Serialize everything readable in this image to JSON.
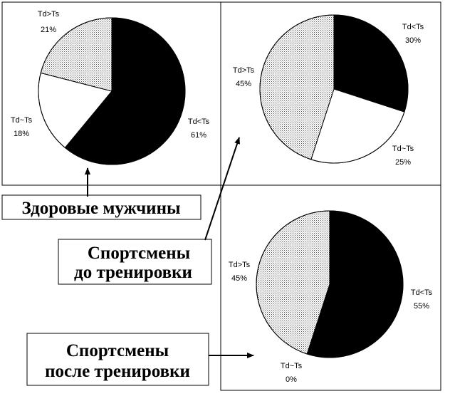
{
  "colors": {
    "Td<Ts": "#000000",
    "Td~Ts": "#ffffff",
    "Td>Ts": "dotted-light-gray"
  },
  "callouts": {
    "healthy": "Здоровые мужчины",
    "before": [
      "Спортсмены",
      "до тренировки"
    ],
    "after": [
      "Спортсмены",
      "после тренировки"
    ]
  },
  "chart_data": [
    {
      "type": "pie",
      "id": "healthy",
      "slices": [
        {
          "label": "Td<Ts",
          "value": 61,
          "text": "61%"
        },
        {
          "label": "Td~Ts",
          "value": 18,
          "text": "18%"
        },
        {
          "label": "Td>Ts",
          "value": 21,
          "text": "21%"
        }
      ]
    },
    {
      "type": "pie",
      "id": "before",
      "slices": [
        {
          "label": "Td<Ts",
          "value": 30,
          "text": "30%"
        },
        {
          "label": "Td~Ts",
          "value": 25,
          "text": "25%"
        },
        {
          "label": "Td>Ts",
          "value": 45,
          "text": "45%"
        }
      ]
    },
    {
      "type": "pie",
      "id": "after",
      "slices": [
        {
          "label": "Td<Ts",
          "value": 55,
          "text": "55%"
        },
        {
          "label": "Td~Ts",
          "value": 0,
          "text": "0%"
        },
        {
          "label": "Td>Ts",
          "value": 45,
          "text": "45%"
        }
      ]
    }
  ]
}
